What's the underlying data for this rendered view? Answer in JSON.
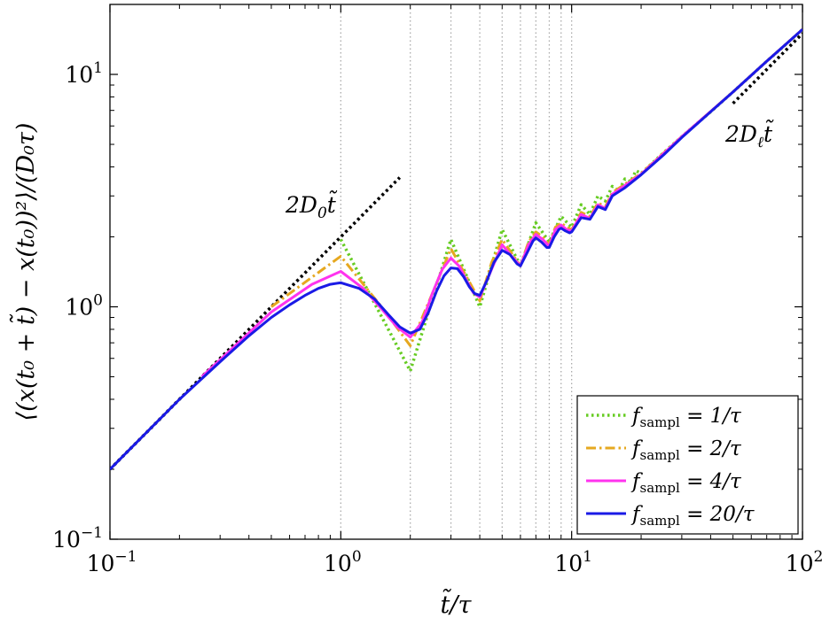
{
  "chart_data": {
    "type": "line",
    "xscale": "log",
    "yscale": "log",
    "xlim": [
      0.1,
      100
    ],
    "ylim": [
      0.1,
      20
    ],
    "grid": false,
    "vertical_reference_lines_x": [
      1,
      2,
      3,
      4,
      5,
      6,
      7,
      8,
      9,
      10
    ],
    "xlabel": "t̃/τ",
    "ylabel": "⟨(x(t₀ + t̃) − x(t₀))²⟩/(D₀τ)",
    "xticks": [
      {
        "value": 0.1,
        "base": "10",
        "exp": "−1"
      },
      {
        "value": 1,
        "base": "10",
        "exp": "0"
      },
      {
        "value": 10,
        "base": "10",
        "exp": "1"
      },
      {
        "value": 100,
        "base": "10",
        "exp": "2"
      }
    ],
    "yticks": [
      {
        "value": 0.1,
        "base": "10",
        "exp": "−1"
      },
      {
        "value": 1,
        "base": "10",
        "exp": "0"
      },
      {
        "value": 10,
        "base": "10",
        "exp": "1"
      }
    ],
    "legend_position": "bottom-right",
    "series": [
      {
        "name": "f_sampl = 1/τ",
        "label_main": "f",
        "label_sub": "sampl",
        "label_rest": " = 1/τ",
        "color": "#66cc22",
        "style": "dotted",
        "x": [
          1,
          2,
          3,
          4,
          5,
          6,
          7,
          8,
          9,
          10,
          11,
          12,
          13,
          14,
          15,
          16,
          17,
          18,
          19,
          20,
          25,
          30,
          40,
          50,
          60,
          70,
          80,
          100
        ],
        "y": [
          1.95,
          0.53,
          1.95,
          1.0,
          2.15,
          1.5,
          2.3,
          1.9,
          2.45,
          2.2,
          2.75,
          2.5,
          3.0,
          2.85,
          3.3,
          3.15,
          3.55,
          3.45,
          3.85,
          3.75,
          4.6,
          5.4,
          6.9,
          8.4,
          9.9,
          11.4,
          12.8,
          15.6
        ]
      },
      {
        "name": "f_sampl = 2/τ",
        "label_main": "f",
        "label_sub": "sampl",
        "label_rest": " = 2/τ",
        "color": "#e6a820",
        "style": "dashdot",
        "x": [
          0.5,
          1,
          1.5,
          2,
          2.5,
          3,
          3.5,
          4,
          4.5,
          5,
          5.5,
          6,
          6.5,
          7,
          7.5,
          8,
          8.5,
          9,
          9.5,
          10,
          11,
          12,
          13,
          14,
          15,
          20,
          30,
          50,
          70,
          100
        ],
        "y": [
          1.0,
          1.65,
          1.0,
          0.68,
          1.15,
          1.78,
          1.35,
          1.06,
          1.55,
          1.95,
          1.7,
          1.5,
          1.9,
          2.1,
          2.0,
          1.85,
          2.2,
          2.3,
          2.2,
          2.15,
          2.55,
          2.45,
          2.8,
          2.7,
          3.1,
          3.75,
          5.4,
          8.4,
          11.4,
          15.6
        ]
      },
      {
        "name": "f_sampl = 4/τ",
        "label_main": "f",
        "label_sub": "sampl",
        "label_rest": " = 4/τ",
        "color": "#ff33ee",
        "style": "solid",
        "x": [
          0.25,
          0.5,
          0.75,
          1,
          1.25,
          1.5,
          1.75,
          2,
          2.25,
          2.5,
          2.75,
          3,
          3.25,
          3.5,
          3.75,
          4,
          4.5,
          5,
          5.5,
          6,
          6.5,
          7,
          7.5,
          8,
          8.5,
          9,
          9.5,
          10,
          11,
          12,
          13,
          14,
          15,
          20,
          30,
          50,
          70,
          100
        ],
        "y": [
          0.5,
          0.95,
          1.25,
          1.42,
          1.2,
          0.98,
          0.82,
          0.74,
          0.86,
          1.15,
          1.45,
          1.62,
          1.5,
          1.3,
          1.15,
          1.1,
          1.45,
          1.85,
          1.65,
          1.5,
          1.85,
          2.05,
          1.95,
          1.82,
          2.15,
          2.25,
          2.15,
          2.12,
          2.5,
          2.4,
          2.75,
          2.65,
          3.05,
          3.72,
          5.4,
          8.4,
          11.4,
          15.6
        ]
      },
      {
        "name": "f_sampl = 20/τ",
        "label_main": "f",
        "label_sub": "sampl",
        "label_rest": " = 20/τ",
        "color": "#1a1ae6",
        "style": "solid",
        "x": [
          0.1,
          0.15,
          0.2,
          0.3,
          0.4,
          0.5,
          0.6,
          0.7,
          0.8,
          0.9,
          1,
          1.2,
          1.4,
          1.6,
          1.8,
          2,
          2.2,
          2.4,
          2.6,
          2.8,
          3,
          3.2,
          3.4,
          3.6,
          3.8,
          4,
          4.3,
          4.6,
          5,
          5.4,
          5.8,
          6,
          6.4,
          6.8,
          7,
          7.4,
          7.8,
          8,
          8.4,
          8.8,
          9,
          9.4,
          9.8,
          10,
          11,
          12,
          13,
          14,
          15,
          17,
          20,
          25,
          30,
          40,
          50,
          70,
          100
        ],
        "y": [
          0.2,
          0.3,
          0.4,
          0.58,
          0.75,
          0.9,
          1.02,
          1.12,
          1.2,
          1.25,
          1.27,
          1.2,
          1.08,
          0.93,
          0.82,
          0.77,
          0.8,
          0.95,
          1.17,
          1.36,
          1.47,
          1.46,
          1.35,
          1.22,
          1.14,
          1.12,
          1.3,
          1.55,
          1.75,
          1.68,
          1.53,
          1.5,
          1.7,
          1.92,
          1.98,
          1.9,
          1.8,
          1.8,
          2.0,
          2.15,
          2.18,
          2.12,
          2.08,
          2.1,
          2.42,
          2.38,
          2.7,
          2.62,
          3.0,
          3.25,
          3.7,
          4.5,
          5.35,
          6.9,
          8.4,
          11.4,
          15.6
        ]
      }
    ],
    "reference_lines": [
      {
        "label_main": "2D",
        "label_sub": "0",
        "label_rest": "t̃",
        "color": "#000000",
        "style": "dotted",
        "x": [
          0.1,
          1.8
        ],
        "y": [
          0.2,
          3.6
        ]
      },
      {
        "label_main": "2D",
        "label_sub": "ℓ",
        "label_rest": "t̃",
        "color": "#000000",
        "style": "dotted",
        "x": [
          50,
          100
        ],
        "y": [
          7.5,
          15
        ]
      }
    ]
  }
}
